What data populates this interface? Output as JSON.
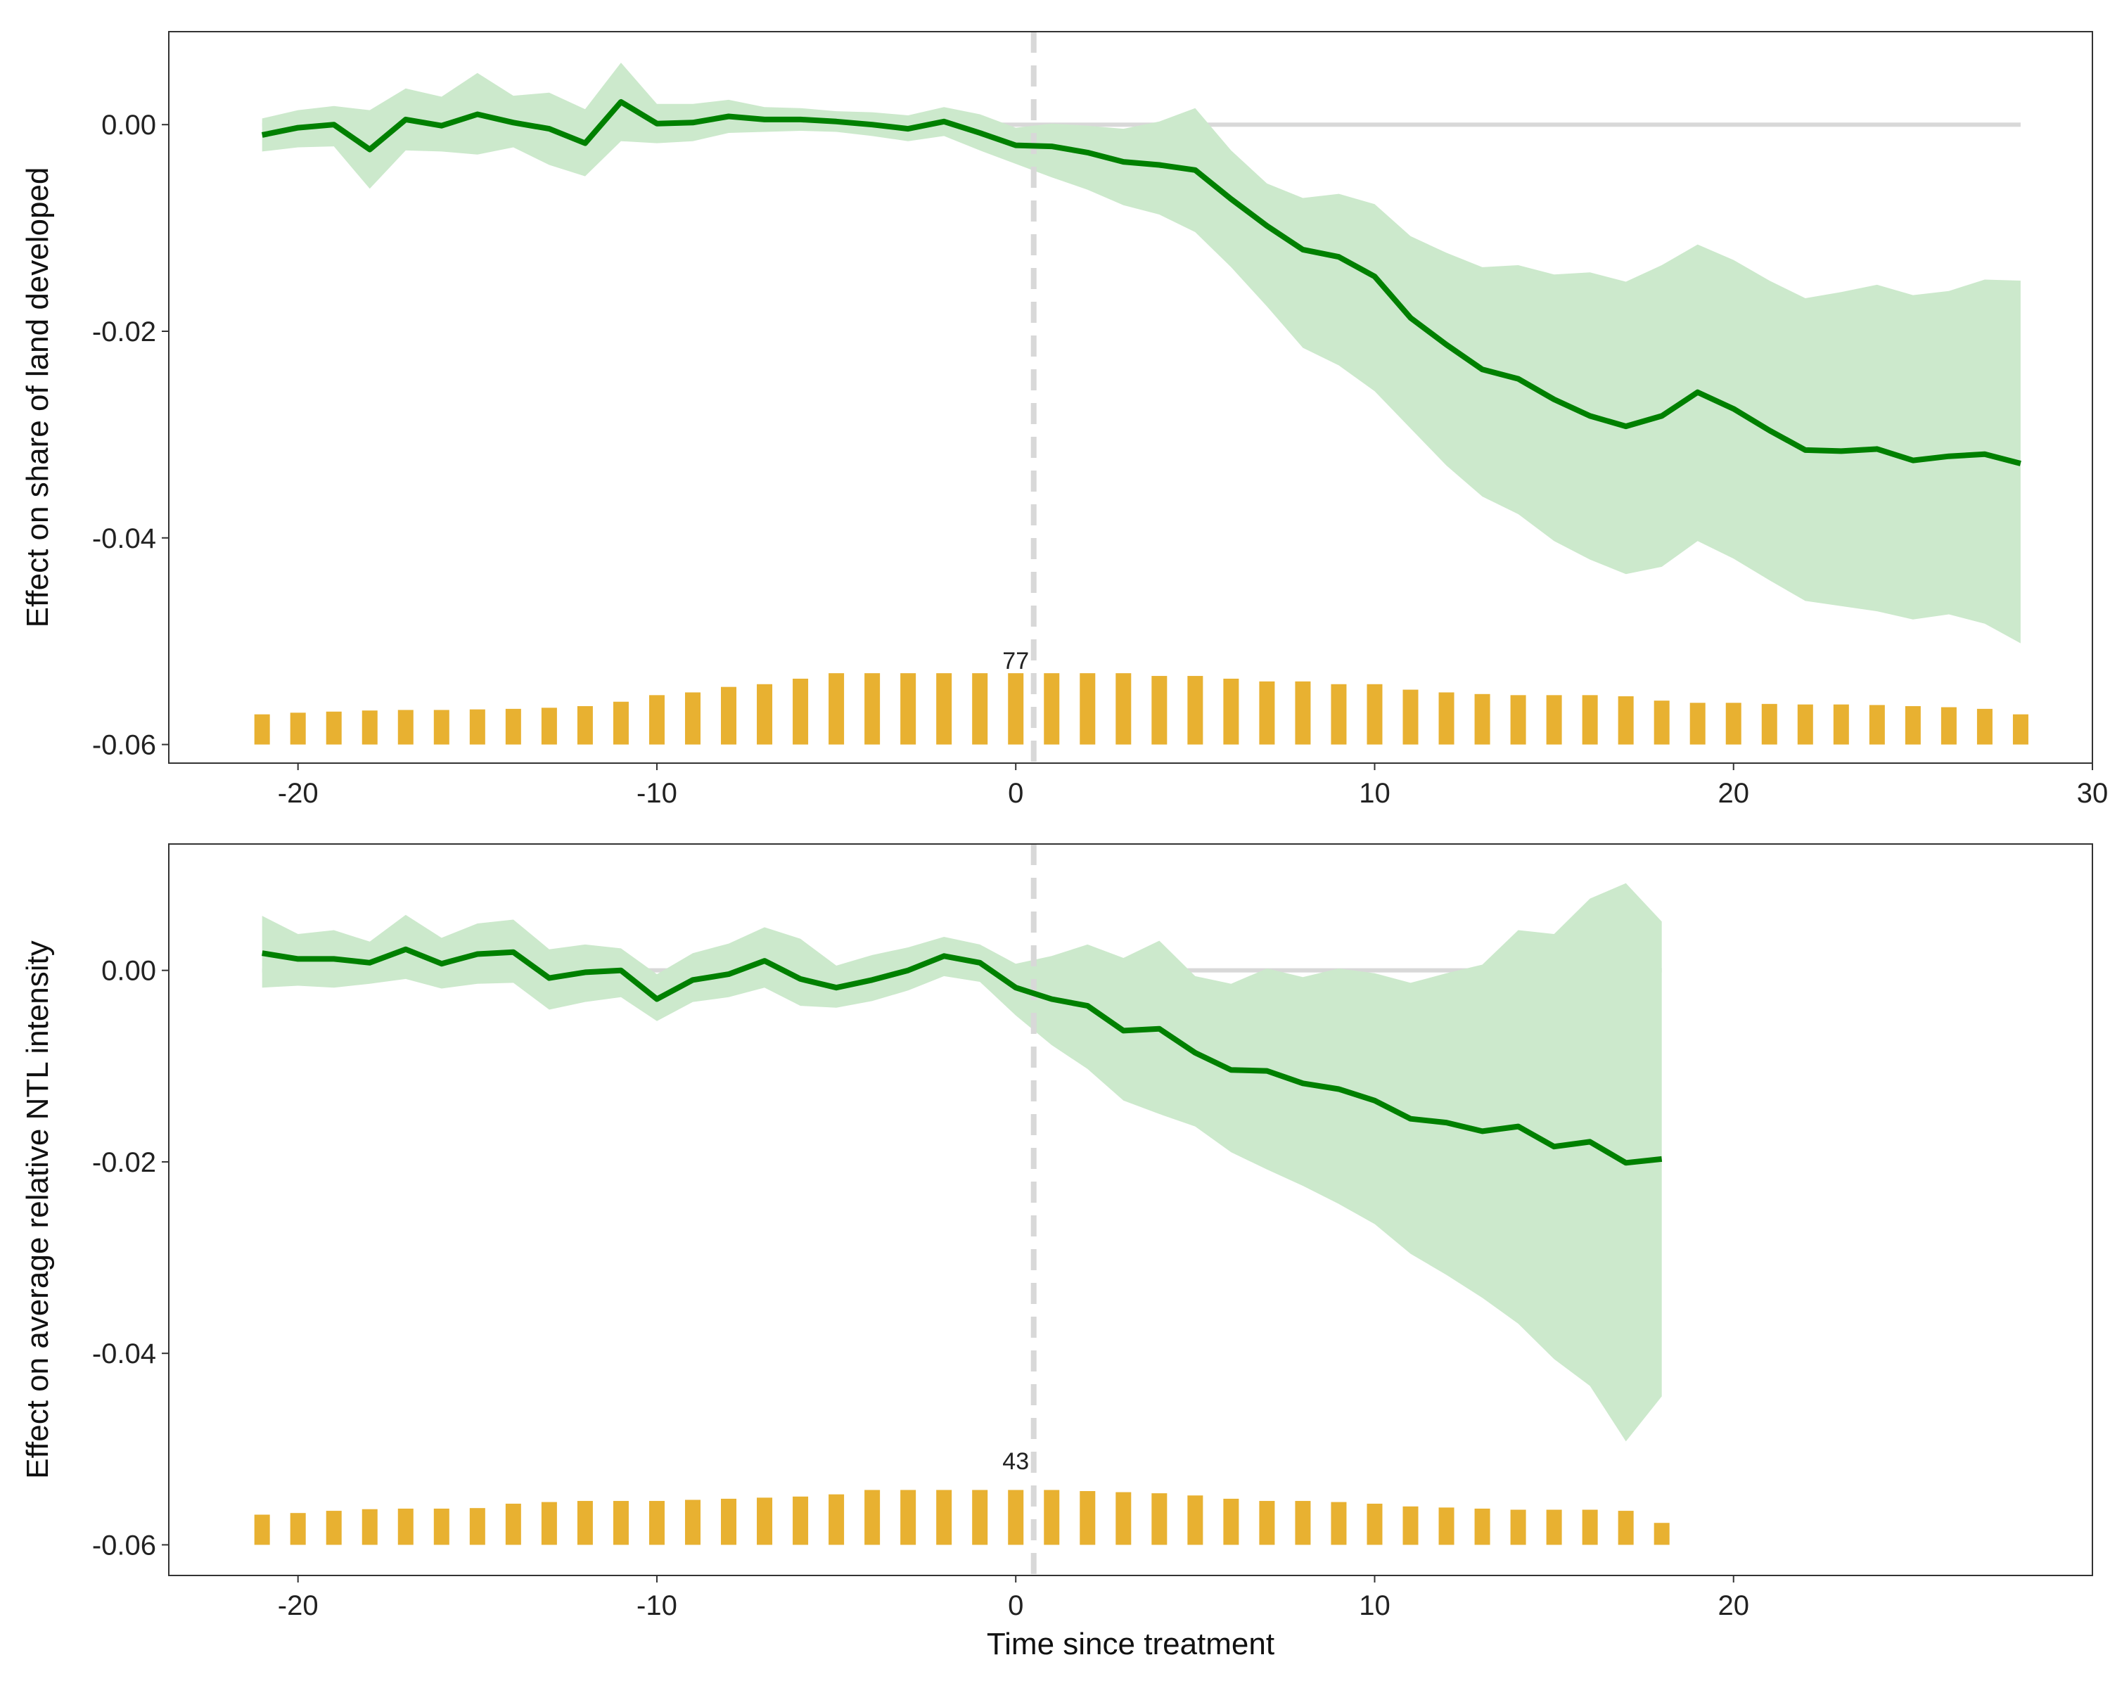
{
  "colors": {
    "line": "#008000",
    "band": "#cce9cc",
    "bars": "#e8b131",
    "zero_line": "#d8d8d8",
    "treatment_line": "#d8d8d8",
    "panel_border": "#333333"
  },
  "chart_data": [
    {
      "type": "line",
      "panel": "top",
      "xlabel": "",
      "ylabel": "Effect on share of land developed",
      "xlim": [
        -23.6,
        30
      ],
      "ylim": [
        -0.0618,
        0.009
      ],
      "xticks": [
        -20,
        -10,
        0,
        10,
        20,
        30
      ],
      "xtick_labels": [
        "-20",
        "-10",
        "0",
        "10",
        "20",
        "30"
      ],
      "yticks": [
        0.0,
        -0.02,
        -0.04,
        -0.06
      ],
      "ytick_labels": [
        "0.00",
        "-0.02",
        "-0.04",
        "-0.06"
      ],
      "treatment_x": 0.5,
      "grid": false,
      "x": [
        -21,
        -20,
        -19,
        -18,
        -17,
        -16,
        -15,
        -14,
        -13,
        -12,
        -11,
        -10,
        -9,
        -8,
        -7,
        -6,
        -5,
        -4,
        -3,
        -2,
        -1,
        0,
        1,
        2,
        3,
        4,
        5,
        6,
        7,
        8,
        9,
        10,
        11,
        12,
        13,
        14,
        15,
        16,
        17,
        18,
        19,
        20,
        21,
        22,
        23,
        24,
        25,
        26,
        27,
        28
      ],
      "estimate": [
        -0.001,
        -0.0003,
        0.0,
        -0.0024,
        0.0005,
        -0.0001,
        0.001,
        0.0002,
        -0.0004,
        -0.0018,
        0.0022,
        0.0001,
        0.0002,
        0.0008,
        0.0005,
        0.0005,
        0.0003,
        0.0,
        -0.0004,
        0.0003,
        -0.0008,
        -0.002,
        -0.0021,
        -0.0027,
        -0.0036,
        -0.0039,
        -0.0044,
        -0.0072,
        -0.0098,
        -0.0121,
        -0.0128,
        -0.0147,
        -0.0187,
        -0.0213,
        -0.0237,
        -0.0246,
        -0.0266,
        -0.0282,
        -0.0292,
        -0.0282,
        -0.0259,
        -0.0275,
        -0.0296,
        -0.0315,
        -0.0316,
        -0.0314,
        -0.0325,
        -0.0321,
        -0.0319,
        -0.0328
      ],
      "ci_upper": [
        0.0006,
        0.0014,
        0.0018,
        0.0014,
        0.0035,
        0.0027,
        0.005,
        0.0028,
        0.0031,
        0.0015,
        0.006,
        0.002,
        0.002,
        0.0024,
        0.0017,
        0.0016,
        0.0013,
        0.0012,
        0.0009,
        0.0017,
        0.001,
        -0.0003,
        0.0001,
        -0.0001,
        -0.0004,
        0.0003,
        0.0016,
        -0.0025,
        -0.0057,
        -0.0071,
        -0.0067,
        -0.0077,
        -0.0108,
        -0.0124,
        -0.0138,
        -0.0136,
        -0.0145,
        -0.0143,
        -0.0152,
        -0.0136,
        -0.0116,
        -0.0131,
        -0.0151,
        -0.0168,
        -0.0162,
        -0.0155,
        -0.0165,
        -0.0161,
        -0.015,
        -0.0151
      ],
      "ci_lower": [
        -0.0026,
        -0.0022,
        -0.0021,
        -0.0062,
        -0.0025,
        -0.0026,
        -0.0029,
        -0.0022,
        -0.0039,
        -0.005,
        -0.0016,
        -0.0018,
        -0.0016,
        -0.0008,
        -0.0007,
        -0.0006,
        -0.0007,
        -0.0011,
        -0.0016,
        -0.0011,
        -0.0025,
        -0.0038,
        -0.0051,
        -0.0063,
        -0.0078,
        -0.0087,
        -0.0104,
        -0.0138,
        -0.0176,
        -0.0216,
        -0.0233,
        -0.0258,
        -0.0294,
        -0.033,
        -0.036,
        -0.0377,
        -0.0403,
        -0.0421,
        -0.0435,
        -0.0428,
        -0.0403,
        -0.042,
        -0.0441,
        -0.0461,
        -0.0466,
        -0.0471,
        -0.0479,
        -0.0474,
        -0.0483,
        -0.0502
      ],
      "bar_heights": [
        0.55,
        0.58,
        0.6,
        0.62,
        0.63,
        0.63,
        0.64,
        0.65,
        0.67,
        0.7,
        0.78,
        0.9,
        0.95,
        1.05,
        1.1,
        1.2,
        1.3,
        1.3,
        1.3,
        1.3,
        1.3,
        1.3,
        1.3,
        1.3,
        1.3,
        1.25,
        1.25,
        1.2,
        1.15,
        1.15,
        1.1,
        1.1,
        1.0,
        0.95,
        0.92,
        0.9,
        0.9,
        0.9,
        0.88,
        0.8,
        0.76,
        0.76,
        0.74,
        0.73,
        0.73,
        0.72,
        0.7,
        0.68,
        0.65,
        0.55
      ],
      "bar_label": "77",
      "bar_label_x": 0
    },
    {
      "type": "line",
      "panel": "bottom",
      "xlabel": "Time since treatment",
      "ylabel": "Effect on average relative NTL intensity",
      "xlim": [
        -23.6,
        30
      ],
      "ylim": [
        -0.0632,
        0.0132
      ],
      "xticks": [
        -20,
        -10,
        0,
        10,
        20
      ],
      "xtick_labels": [
        "-20",
        "-10",
        "0",
        "10",
        "20"
      ],
      "yticks": [
        0.0,
        -0.02,
        -0.04,
        -0.06
      ],
      "ytick_labels": [
        "0.00",
        "-0.02",
        "-0.04",
        "-0.06"
      ],
      "treatment_x": 0.5,
      "grid": false,
      "x": [
        -21,
        -20,
        -19,
        -18,
        -17,
        -16,
        -15,
        -14,
        -13,
        -12,
        -11,
        -10,
        -9,
        -8,
        -7,
        -6,
        -5,
        -4,
        -3,
        -2,
        -1,
        0,
        1,
        2,
        3,
        4,
        5,
        6,
        7,
        8,
        9,
        10,
        11,
        12,
        13,
        14,
        15,
        16,
        17,
        18
      ],
      "estimate": [
        0.0018,
        0.0012,
        0.0012,
        0.0008,
        0.0022,
        0.0007,
        0.0017,
        0.0019,
        -0.0008,
        -0.0002,
        0.0,
        -0.003,
        -0.001,
        -0.0004,
        0.001,
        -0.0009,
        -0.0018,
        -0.001,
        0.0,
        0.0015,
        0.0008,
        -0.0018,
        -0.003,
        -0.0037,
        -0.0063,
        -0.0061,
        -0.0086,
        -0.0104,
        -0.0105,
        -0.0118,
        -0.0124,
        -0.0136,
        -0.0155,
        -0.0159,
        -0.0168,
        -0.0163,
        -0.0184,
        -0.0179,
        -0.0201,
        -0.0197
      ],
      "ci_upper": [
        0.0057,
        0.0038,
        0.0042,
        0.003,
        0.0058,
        0.0034,
        0.0049,
        0.0053,
        0.0022,
        0.0027,
        0.0023,
        -0.0004,
        0.0018,
        0.0028,
        0.0045,
        0.0033,
        0.0005,
        0.0016,
        0.0024,
        0.0035,
        0.0027,
        0.0007,
        0.0015,
        0.0027,
        0.0013,
        0.0031,
        -0.0006,
        -0.0014,
        0.0002,
        -0.0007,
        0.0002,
        -0.0003,
        -0.0013,
        -0.0003,
        0.0006,
        0.0042,
        0.0038,
        0.0075,
        0.0091,
        0.0051
      ],
      "ci_lower": [
        -0.0018,
        -0.0016,
        -0.0018,
        -0.0014,
        -0.0009,
        -0.0019,
        -0.0014,
        -0.0013,
        -0.0041,
        -0.0033,
        -0.0028,
        -0.0053,
        -0.0033,
        -0.0028,
        -0.0018,
        -0.0037,
        -0.0039,
        -0.0032,
        -0.0021,
        -0.0006,
        -0.0012,
        -0.0047,
        -0.0078,
        -0.0103,
        -0.0136,
        -0.015,
        -0.0163,
        -0.019,
        -0.0208,
        -0.0225,
        -0.0244,
        -0.0265,
        -0.0296,
        -0.0318,
        -0.0342,
        -0.0369,
        -0.0406,
        -0.0434,
        -0.0492,
        -0.0445
      ],
      "bar_heights": [
        0.55,
        0.58,
        0.62,
        0.65,
        0.66,
        0.66,
        0.67,
        0.75,
        0.78,
        0.8,
        0.8,
        0.8,
        0.82,
        0.84,
        0.86,
        0.88,
        0.92,
        1.0,
        1.0,
        1.0,
        1.0,
        1.0,
        1.0,
        0.98,
        0.96,
        0.94,
        0.9,
        0.84,
        0.8,
        0.8,
        0.78,
        0.75,
        0.7,
        0.68,
        0.66,
        0.64,
        0.64,
        0.64,
        0.62,
        0.4
      ],
      "bar_label": "43",
      "bar_label_x": 0
    }
  ]
}
